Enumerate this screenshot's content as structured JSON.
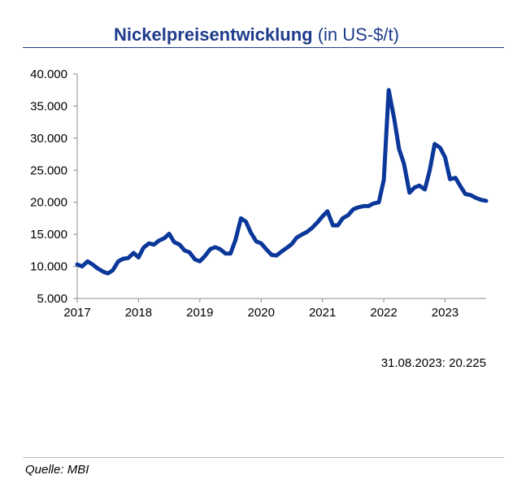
{
  "header": {
    "title_bold": "Nickelpreisentwicklung",
    "title_rest": " (in US-$/t)"
  },
  "note": "31.08.2023: 20.225",
  "source": "Quelle: MBI",
  "colors": {
    "line": "#0a3799",
    "title": "#1f3c8c"
  },
  "chart_data": {
    "type": "line",
    "title": "Nickelpreisentwicklung (in US-$/t)",
    "xlabel": "",
    "ylabel": "",
    "ylim": [
      5000,
      40000
    ],
    "xlim": [
      2017.0,
      2023.67
    ],
    "y_ticks": [
      5000,
      10000,
      15000,
      20000,
      25000,
      30000,
      35000,
      40000
    ],
    "y_tick_labels": [
      "5.000",
      "10.000",
      "15.000",
      "20.000",
      "25.000",
      "30.000",
      "35.000",
      "40.000"
    ],
    "x_ticks": [
      2017,
      2018,
      2019,
      2020,
      2021,
      2022,
      2023
    ],
    "x_tick_labels": [
      "2017",
      "2018",
      "2019",
      "2020",
      "2021",
      "2022",
      "2023"
    ],
    "grid": false,
    "series": [
      {
        "x": [
          2017.0,
          2017.08,
          2017.17,
          2017.25,
          2017.33,
          2017.42,
          2017.5,
          2017.58,
          2017.67,
          2017.75,
          2017.83,
          2017.92,
          2018.0,
          2018.08,
          2018.17,
          2018.25,
          2018.33,
          2018.42,
          2018.5,
          2018.58,
          2018.67,
          2018.75,
          2018.83,
          2018.92,
          2019.0,
          2019.08,
          2019.17,
          2019.25,
          2019.33,
          2019.42,
          2019.5,
          2019.58,
          2019.67,
          2019.75,
          2019.83,
          2019.92,
          2020.0,
          2020.08,
          2020.17,
          2020.25,
          2020.33,
          2020.42,
          2020.5,
          2020.58,
          2020.67,
          2020.75,
          2020.83,
          2020.92,
          2021.0,
          2021.08,
          2021.17,
          2021.25,
          2021.33,
          2021.42,
          2021.5,
          2021.58,
          2021.67,
          2021.75,
          2021.83,
          2021.92,
          2022.0,
          2022.08,
          2022.17,
          2022.25,
          2022.33,
          2022.42,
          2022.5,
          2022.58,
          2022.67,
          2022.75,
          2022.83,
          2022.92,
          2023.0,
          2023.08,
          2023.17,
          2023.25,
          2023.33,
          2023.42,
          2023.5,
          2023.58,
          2023.67
        ],
        "values": [
          10300,
          10000,
          10800,
          10300,
          9700,
          9200,
          8900,
          9400,
          10800,
          11200,
          11300,
          12100,
          11400,
          12900,
          13600,
          13400,
          14000,
          14400,
          15100,
          13800,
          13400,
          12500,
          12200,
          11100,
          10800,
          11600,
          12700,
          13000,
          12700,
          12000,
          12000,
          14100,
          17500,
          17000,
          15300,
          13900,
          13600,
          12700,
          11800,
          11700,
          12300,
          12900,
          13500,
          14500,
          15000,
          15400,
          16000,
          16900,
          17800,
          18600,
          16400,
          16400,
          17500,
          18000,
          18900,
          19200,
          19400,
          19400,
          19800,
          20000,
          23500,
          37500,
          33000,
          28300,
          26000,
          21500,
          22300,
          22600,
          22000,
          25000,
          29100,
          28500,
          27000,
          23600,
          23800,
          22500,
          21300,
          21100,
          20700,
          20400,
          20225
        ]
      }
    ]
  }
}
